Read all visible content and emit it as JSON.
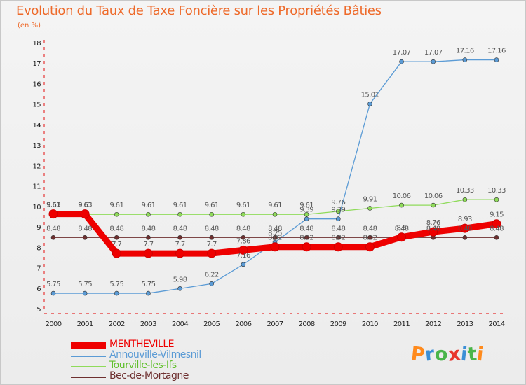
{
  "header": {
    "title": "Evolution du Taux de Taxe Foncière sur les Propriétés Bâties",
    "unit": "(en %)"
  },
  "logo": {
    "letters": [
      "P",
      "r",
      "o",
      "x",
      "i",
      "t",
      "i"
    ],
    "colors": [
      "#ff8a1c",
      "#3b8fd6",
      "#4ab54a",
      "#e8342c",
      "#3b8fd6",
      "#4ab54a",
      "#ff8a1c"
    ]
  },
  "chart_data": {
    "type": "line",
    "title": "Evolution du Taux de Taxe Foncière sur les Propriétés Bâties",
    "ylabel": "(en %)",
    "xlabel": "",
    "ylim": [
      5,
      18
    ],
    "yticks": [
      5,
      6,
      7,
      8,
      9,
      10,
      11,
      12,
      13,
      14,
      15,
      16,
      17,
      18
    ],
    "grid": false,
    "legend": "bottom-left",
    "x": [
      "2000",
      "2001",
      "2002",
      "2003",
      "2004",
      "2005",
      "2006",
      "2007",
      "2008",
      "2009",
      "2010",
      "2011",
      "2012",
      "2013",
      "2014"
    ],
    "series": [
      {
        "name": "MENTHEVILLE",
        "color": "#ee0000",
        "values": [
          9.63,
          9.63,
          7.7,
          7.7,
          7.7,
          7.7,
          7.86,
          8.02,
          8.02,
          8.02,
          8.02,
          8.5,
          8.76,
          8.93,
          9.15
        ],
        "labels": [
          "9.63",
          "9.63",
          "7.7",
          "7.7",
          "7.7",
          "7.7",
          "7.86",
          "8.02",
          "8.02",
          "8.02",
          "8.02",
          "8.5",
          "8.76",
          "8.93",
          "9.15"
        ]
      },
      {
        "name": "Annouville-Vilmesnil",
        "color": "#5b9bd5",
        "values": [
          5.75,
          5.75,
          5.75,
          5.75,
          5.98,
          6.22,
          7.16,
          8.25,
          9.39,
          9.39,
          15.01,
          17.07,
          17.07,
          17.16,
          17.16
        ],
        "labels": [
          "5.75",
          "5.75",
          "5.75",
          "5.75",
          "5.98",
          "6.22",
          "7.16",
          "8.25",
          "9.39",
          "9.39",
          "15.01",
          "17.07",
          "17.07",
          "17.16",
          "17.16"
        ]
      },
      {
        "name": "Tourville-les-Ifs",
        "color": "#8fdb5a",
        "values": [
          9.61,
          9.61,
          9.61,
          9.61,
          9.61,
          9.61,
          9.61,
          9.61,
          9.61,
          9.76,
          9.91,
          10.06,
          10.06,
          10.33,
          10.33
        ],
        "labels": [
          "9.61",
          "9.61",
          "9.61",
          "9.61",
          "9.61",
          "9.61",
          "9.61",
          "9.61",
          "9.61",
          "9.76",
          "9.91",
          "10.06",
          "10.06",
          "10.33",
          "10.33"
        ]
      },
      {
        "name": "Bec-de-Mortagne",
        "color": "#6e2f2f",
        "values": [
          8.48,
          8.48,
          8.48,
          8.48,
          8.48,
          8.48,
          8.48,
          8.48,
          8.48,
          8.48,
          8.48,
          8.48,
          8.48,
          8.48,
          8.48
        ],
        "labels": [
          "8.48",
          "8.48",
          "8.48",
          "8.48",
          "8.48",
          "8.48",
          "8.48",
          "8.48",
          "8.48",
          "8.48",
          "8.48",
          "8.48",
          "8.48",
          "8.48",
          "8.48"
        ]
      }
    ]
  }
}
